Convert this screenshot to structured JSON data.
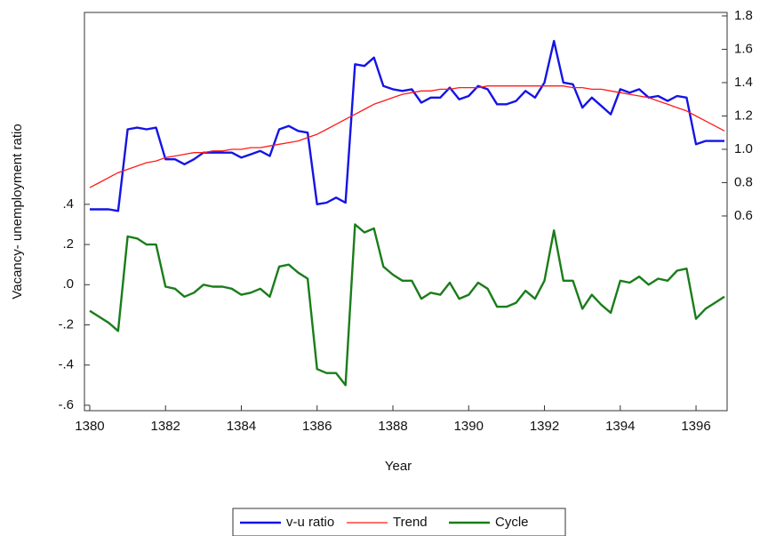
{
  "chart_data": {
    "type": "line",
    "x_label": "Year",
    "y_label": "Vacancy- unemployment ratio",
    "x": [
      1380,
      1380.25,
      1380.5,
      1380.75,
      1381,
      1381.25,
      1381.5,
      1381.75,
      1382,
      1382.25,
      1382.5,
      1382.75,
      1383,
      1383.25,
      1383.5,
      1383.75,
      1384,
      1384.25,
      1384.5,
      1384.75,
      1385,
      1385.25,
      1385.5,
      1385.75,
      1386,
      1386.25,
      1386.5,
      1386.75,
      1387,
      1387.25,
      1387.5,
      1387.75,
      1388,
      1388.25,
      1388.5,
      1388.75,
      1389,
      1389.25,
      1389.5,
      1389.75,
      1390,
      1390.25,
      1390.5,
      1390.75,
      1391,
      1391.25,
      1391.5,
      1391.75,
      1392,
      1392.25,
      1392.5,
      1392.75,
      1393,
      1393.25,
      1393.5,
      1393.75,
      1394,
      1394.25,
      1394.5,
      1394.75,
      1395,
      1395.25,
      1395.5,
      1395.75,
      1396,
      1396.25,
      1396.5,
      1396.75
    ],
    "series": [
      {
        "name": "v-u ratio",
        "color": "#1414e6",
        "axis": "y2",
        "values": [
          0.64,
          0.64,
          0.64,
          0.63,
          1.12,
          1.13,
          1.12,
          1.13,
          0.94,
          0.94,
          0.91,
          0.94,
          0.98,
          0.98,
          0.98,
          0.98,
          0.95,
          0.97,
          0.99,
          0.96,
          1.12,
          1.14,
          1.11,
          1.1,
          0.67,
          0.68,
          0.71,
          0.68,
          1.51,
          1.5,
          1.55,
          1.38,
          1.36,
          1.35,
          1.36,
          1.28,
          1.31,
          1.31,
          1.37,
          1.3,
          1.32,
          1.38,
          1.36,
          1.27,
          1.27,
          1.29,
          1.35,
          1.31,
          1.4,
          1.65,
          1.4,
          1.39,
          1.25,
          1.31,
          1.26,
          1.21,
          1.36,
          1.34,
          1.36,
          1.31,
          1.32,
          1.29,
          1.32,
          1.31,
          1.03,
          1.05,
          1.05,
          1.05
        ]
      },
      {
        "name": "Trend",
        "color": "#ff1a1a",
        "axis": "y2",
        "values": [
          0.77,
          0.8,
          0.83,
          0.86,
          0.88,
          0.9,
          0.92,
          0.93,
          0.95,
          0.96,
          0.97,
          0.98,
          0.98,
          0.99,
          0.99,
          1.0,
          1.0,
          1.01,
          1.01,
          1.02,
          1.03,
          1.04,
          1.05,
          1.07,
          1.09,
          1.12,
          1.15,
          1.18,
          1.21,
          1.24,
          1.27,
          1.29,
          1.31,
          1.33,
          1.34,
          1.35,
          1.35,
          1.36,
          1.36,
          1.37,
          1.37,
          1.37,
          1.38,
          1.38,
          1.38,
          1.38,
          1.38,
          1.38,
          1.38,
          1.38,
          1.38,
          1.37,
          1.37,
          1.36,
          1.36,
          1.35,
          1.34,
          1.33,
          1.32,
          1.31,
          1.29,
          1.27,
          1.25,
          1.23,
          1.2,
          1.17,
          1.14,
          1.11
        ]
      },
      {
        "name": "Cycle",
        "color": "#1a7d1a",
        "axis": "y",
        "values": [
          -0.13,
          -0.16,
          -0.19,
          -0.23,
          0.24,
          0.23,
          0.2,
          0.2,
          -0.01,
          -0.02,
          -0.06,
          -0.04,
          0.0,
          -0.01,
          -0.01,
          -0.02,
          -0.05,
          -0.04,
          -0.02,
          -0.06,
          0.09,
          0.1,
          0.06,
          0.03,
          -0.42,
          -0.44,
          -0.44,
          -0.5,
          0.3,
          0.26,
          0.28,
          0.09,
          0.05,
          0.02,
          0.02,
          -0.07,
          -0.04,
          -0.05,
          0.01,
          -0.07,
          -0.05,
          0.01,
          -0.02,
          -0.11,
          -0.11,
          -0.09,
          -0.03,
          -0.07,
          0.02,
          0.27,
          0.02,
          0.02,
          -0.12,
          -0.05,
          -0.1,
          -0.14,
          0.02,
          0.01,
          0.04,
          0.0,
          0.03,
          0.02,
          0.07,
          0.08,
          -0.17,
          -0.12,
          -0.09,
          -0.06
        ]
      }
    ],
    "xlim": [
      1379.86,
      1396.82
    ],
    "xticks": [
      1380,
      1382,
      1384,
      1386,
      1388,
      1390,
      1392,
      1394,
      1396
    ],
    "ylim": [
      -0.627,
      1.355
    ],
    "yticks": [
      {
        "value": -0.6,
        "label": "-.6"
      },
      {
        "value": -0.4,
        "label": "-.4"
      },
      {
        "value": -0.2,
        "label": "-.2"
      },
      {
        "value": 0,
        "label": ".0"
      },
      {
        "value": 0.2,
        "label": ".2"
      },
      {
        "value": 0.4,
        "label": ".4"
      }
    ],
    "y2lim": [
      -0.568,
      1.821
    ],
    "y2ticks": [
      0.6,
      0.8,
      {
        "value": 1.0,
        "label": "1.0"
      },
      1.2,
      1.4,
      1.6,
      1.8
    ],
    "legend": "bottom"
  }
}
